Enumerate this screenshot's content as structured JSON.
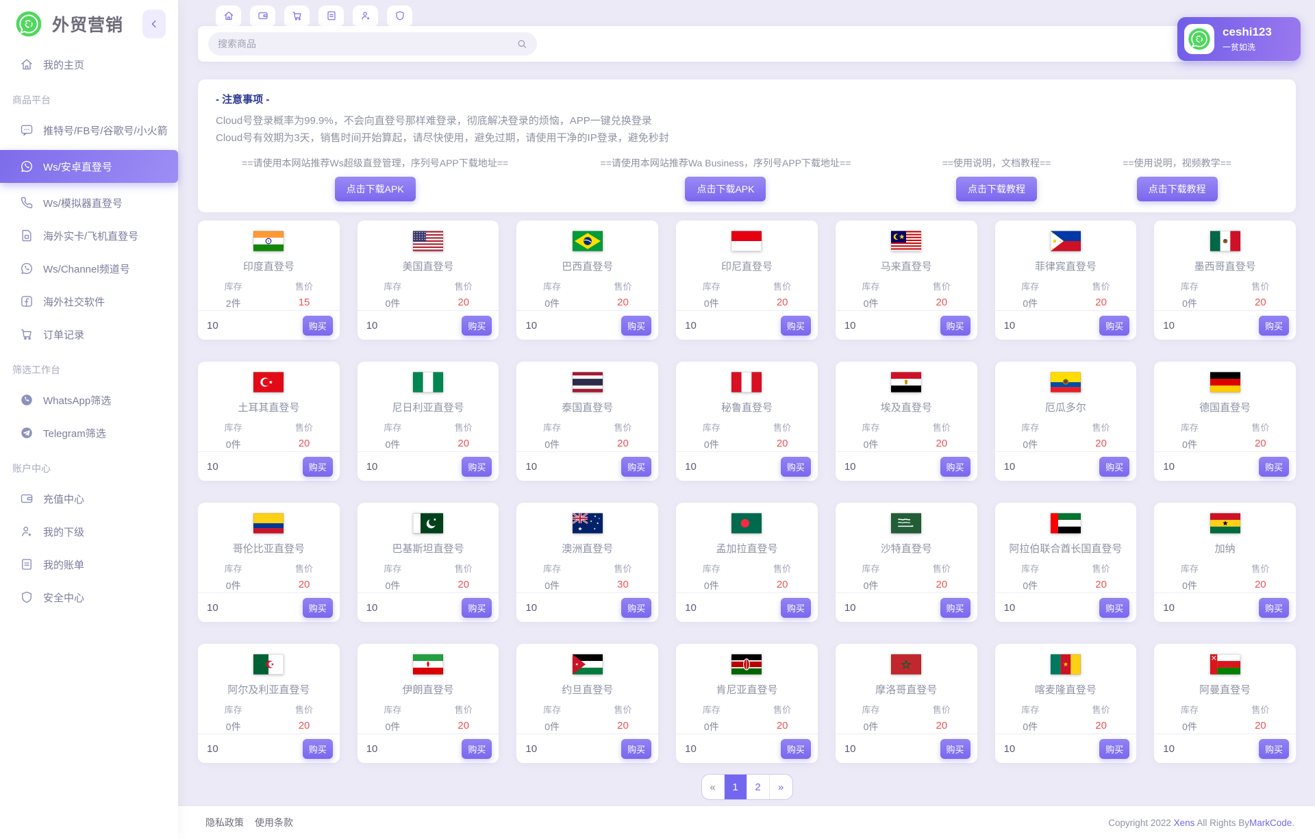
{
  "app": {
    "name": "外贸营销"
  },
  "colors": {
    "accent": "#7367f0",
    "price_red": "#ea5455",
    "notice_title_blue": "#2b3990",
    "logo_green": "#50d75f"
  },
  "sidebar": {
    "logo_title": "外贸营销",
    "items": [
      {
        "type": "item",
        "icon": "home",
        "label": "我的主页"
      },
      {
        "type": "header",
        "label": "商品平台"
      },
      {
        "type": "item",
        "icon": "comment",
        "label": "推特号/FB号/谷歌号/小火箭"
      },
      {
        "type": "item",
        "icon": "whatsapp",
        "label": "Ws/安卓直登号",
        "active": true
      },
      {
        "type": "item",
        "icon": "phone",
        "label": "Ws/模拟器直登号"
      },
      {
        "type": "item",
        "icon": "sim",
        "label": "海外实卡/飞机直登号"
      },
      {
        "type": "item",
        "icon": "whatsapp",
        "label": "Ws/Channel频道号"
      },
      {
        "type": "item",
        "icon": "facebook",
        "label": "海外社交软件"
      },
      {
        "type": "item",
        "icon": "cart",
        "label": "订单记录"
      },
      {
        "type": "header",
        "label": "筛选工作台"
      },
      {
        "type": "item",
        "icon": "whatsapp-filled",
        "label": "WhatsApp筛选"
      },
      {
        "type": "item",
        "icon": "telegram",
        "label": "Telegram筛选"
      },
      {
        "type": "header",
        "label": "账户中心"
      },
      {
        "type": "item",
        "icon": "wallet",
        "label": "充值中心"
      },
      {
        "type": "item",
        "icon": "user-star",
        "label": "我的下级"
      },
      {
        "type": "item",
        "icon": "bill",
        "label": "我的账单"
      },
      {
        "type": "item",
        "icon": "shield",
        "label": "安全中心"
      }
    ]
  },
  "topbar": {
    "tabs": [
      "home",
      "wallet",
      "cart",
      "bill",
      "user-star",
      "shield"
    ],
    "search_placeholder": "搜索商品",
    "user": {
      "name": "ceshi123",
      "subtitle": "一贫如洗"
    }
  },
  "notice": {
    "title": "- 注意事项 -",
    "lines": [
      "Cloud号登录概率为99.9%，不会向直登号那样难登录，彻底解决登录的烦恼，APP一键兑换登录",
      "Cloud号有效期为3天，销售时间开始算起，请尽快使用，避免过期，请使用干净的IP登录，避免秒封"
    ],
    "downloads": [
      {
        "text": "==请使用本网站推荐Ws超级直登管理，序列号APP下载地址==",
        "button": "点击下载APK"
      },
      {
        "text": "==请使用本网站推荐Wa Business，序列号APP下载地址==",
        "button": "点击下载APK"
      },
      {
        "text": "==使用说明，文档教程==",
        "button": "点击下载教程"
      },
      {
        "text": "==使用说明，视频教学==",
        "button": "点击下载教程"
      }
    ]
  },
  "products": {
    "stock_label": "库存",
    "price_label": "售价",
    "unit": "件",
    "buy_label": "购买",
    "default_qty": "10",
    "items": [
      {
        "flag": "india",
        "name": "印度直登号",
        "stock": "2",
        "price": "15"
      },
      {
        "flag": "usa",
        "name": "美国直登号",
        "stock": "0",
        "price": "20"
      },
      {
        "flag": "brazil",
        "name": "巴西直登号",
        "stock": "0",
        "price": "20"
      },
      {
        "flag": "indonesia",
        "name": "印尼直登号",
        "stock": "0",
        "price": "20"
      },
      {
        "flag": "malaysia",
        "name": "马来直登号",
        "stock": "0",
        "price": "20"
      },
      {
        "flag": "philippines",
        "name": "菲律宾直登号",
        "stock": "0",
        "price": "20"
      },
      {
        "flag": "mexico",
        "name": "墨西哥直登号",
        "stock": "0",
        "price": "20"
      },
      {
        "flag": "turkey",
        "name": "土耳其直登号",
        "stock": "0",
        "price": "20"
      },
      {
        "flag": "nigeria",
        "name": "尼日利亚直登号",
        "stock": "0",
        "price": "20"
      },
      {
        "flag": "thailand",
        "name": "泰国直登号",
        "stock": "0",
        "price": "20"
      },
      {
        "flag": "peru",
        "name": "秘鲁直登号",
        "stock": "0",
        "price": "20"
      },
      {
        "flag": "egypt",
        "name": "埃及直登号",
        "stock": "0",
        "price": "20"
      },
      {
        "flag": "ecuador",
        "name": "厄瓜多尔",
        "stock": "0",
        "price": "20"
      },
      {
        "flag": "germany",
        "name": "德国直登号",
        "stock": "0",
        "price": "20"
      },
      {
        "flag": "colombia",
        "name": "哥伦比亚直登号",
        "stock": "0",
        "price": "20"
      },
      {
        "flag": "pakistan",
        "name": "巴基斯坦直登号",
        "stock": "0",
        "price": "20"
      },
      {
        "flag": "australia",
        "name": "澳洲直登号",
        "stock": "0",
        "price": "30"
      },
      {
        "flag": "bangladesh",
        "name": "孟加拉直登号",
        "stock": "0",
        "price": "20"
      },
      {
        "flag": "saudi",
        "name": "沙特直登号",
        "stock": "0",
        "price": "20"
      },
      {
        "flag": "uae",
        "name": "阿拉伯联合酋长国直登号",
        "stock": "0",
        "price": "20"
      },
      {
        "flag": "ghana",
        "name": "加纳",
        "stock": "0",
        "price": "20"
      },
      {
        "flag": "algeria",
        "name": "阿尔及利亚直登号",
        "stock": "0",
        "price": "20"
      },
      {
        "flag": "iran",
        "name": "伊朗直登号",
        "stock": "0",
        "price": "20"
      },
      {
        "flag": "jordan",
        "name": "约旦直登号",
        "stock": "0",
        "price": "20"
      },
      {
        "flag": "kenya",
        "name": "肯尼亚直登号",
        "stock": "0",
        "price": "20"
      },
      {
        "flag": "morocco",
        "name": "摩洛哥直登号",
        "stock": "0",
        "price": "20"
      },
      {
        "flag": "cameroon",
        "name": "喀麦隆直登号",
        "stock": "0",
        "price": "20"
      },
      {
        "flag": "oman",
        "name": "阿曼直登号",
        "stock": "0",
        "price": "20"
      }
    ]
  },
  "pagination": {
    "prev": "«",
    "pages": [
      "1",
      "2"
    ],
    "active": "1",
    "next": "»"
  },
  "footer": {
    "links": [
      "隐私政策",
      "使用条款"
    ],
    "copyright_prefix": "Copyright 2022",
    "brand": "Xens",
    "copyright_middle": "All Rights By",
    "company": "MarkCode",
    "suffix": "."
  }
}
